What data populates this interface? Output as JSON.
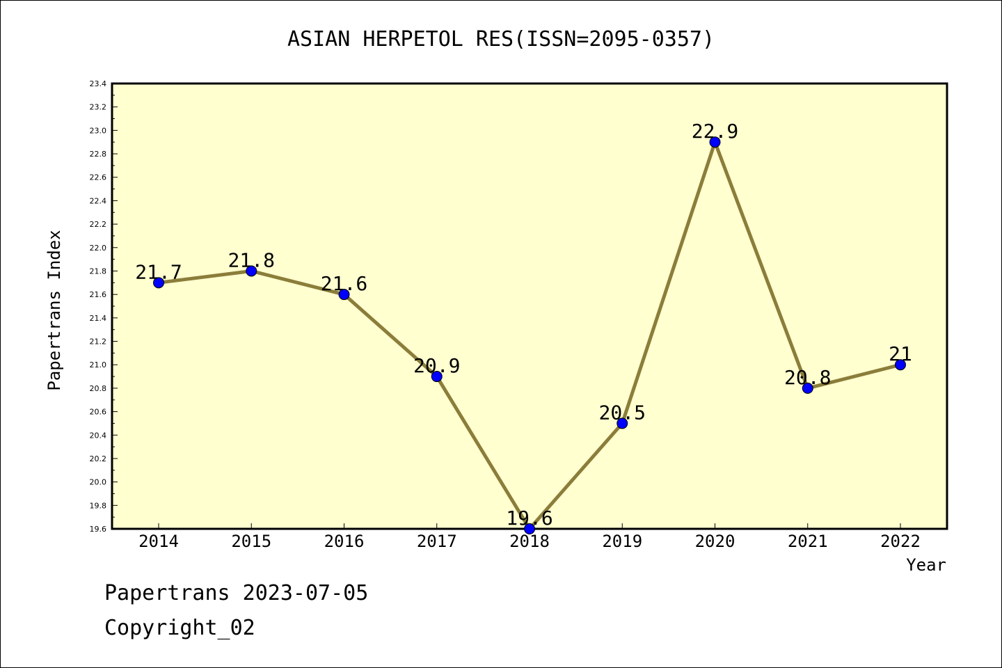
{
  "chart_data": {
    "type": "line",
    "title": "ASIAN HERPETOL RES(ISSN=2095-0357)",
    "xlabel": "Year",
    "ylabel": "Papertrans Index",
    "categories": [
      "2014",
      "2015",
      "2016",
      "2017",
      "2018",
      "2019",
      "2020",
      "2021",
      "2022"
    ],
    "values": [
      21.7,
      21.8,
      21.6,
      20.9,
      19.6,
      20.5,
      22.9,
      20.8,
      21.0
    ],
    "data_labels": [
      "21.7",
      "21.8",
      "21.6",
      "20.9",
      "19.6",
      "20.5",
      "22.9",
      "20.8",
      "21"
    ],
    "ylim": [
      19.6,
      23.4
    ],
    "yticks": [
      "19.6",
      "19.8",
      "20.0",
      "20.2",
      "20.4",
      "20.6",
      "20.8",
      "21.0",
      "21.2",
      "21.4",
      "21.6",
      "21.8",
      "22.0",
      "22.2",
      "22.4",
      "22.6",
      "22.8",
      "23.0",
      "23.2",
      "23.4"
    ],
    "grid": false,
    "colors": {
      "plot_background": "#ffffd0",
      "line": "#8b7d3a",
      "marker": "#0000ff"
    }
  },
  "footer": {
    "date_line": "Papertrans 2023-07-05",
    "copyright_line": "Copyright_02"
  }
}
